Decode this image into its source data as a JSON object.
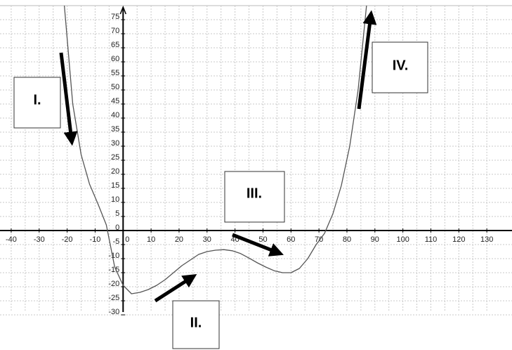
{
  "annotations": [
    "I.",
    "II.",
    "III.",
    "IV."
  ],
  "chart_data": {
    "type": "line",
    "x": [
      -21,
      -18,
      -15,
      -12,
      -9,
      -6,
      -3,
      0,
      3,
      6,
      9,
      12,
      15,
      18,
      21,
      24,
      27,
      30,
      33,
      36,
      39,
      42,
      45,
      48,
      51,
      54,
      57,
      60,
      63,
      66,
      69,
      72,
      75,
      78,
      81,
      84,
      87
    ],
    "series": [
      {
        "color": "#555555",
        "values": [
          80,
          45,
          27,
          16.5,
          9.5,
          2,
          -13,
          -19.5,
          -22.5,
          -22,
          -21,
          -19.5,
          -17.5,
          -15,
          -12.5,
          -10.5,
          -8.5,
          -7.5,
          -7,
          -6.8,
          -7.2,
          -8.2,
          -9.8,
          -11.5,
          -13,
          -14.3,
          -15,
          -15,
          -13.5,
          -10,
          -5,
          -1,
          6,
          16,
          30,
          50,
          80
        ]
      }
    ],
    "xlim": [
      -44,
      139
    ],
    "ylim": [
      -29,
      82
    ],
    "xticks": [
      -40,
      -30,
      -20,
      -10,
      0,
      10,
      20,
      30,
      40,
      50,
      60,
      70,
      80,
      90,
      100,
      110,
      120,
      130
    ],
    "yticks": [
      -30,
      -25,
      -20,
      -15,
      -10,
      -5,
      0,
      5,
      10,
      15,
      20,
      25,
      30,
      35,
      40,
      45,
      50,
      55,
      60,
      65,
      70,
      75
    ],
    "grid": true
  }
}
